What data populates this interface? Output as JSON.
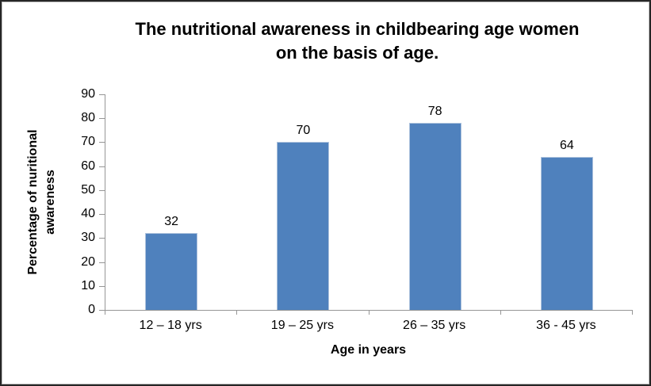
{
  "chart_data": {
    "type": "bar",
    "title": "The nutritional awareness in childbearing age women on the basis of age.",
    "categories": [
      "12 – 18 yrs",
      "19 – 25 yrs",
      "26 – 35 yrs",
      "36 - 45 yrs"
    ],
    "values": [
      32,
      70,
      78,
      64
    ],
    "data_labels": [
      "32",
      "70",
      "78",
      "64"
    ],
    "xlabel": "Age in years",
    "ylabel": "Percentage of nuritional awareness",
    "ylim": [
      0,
      90
    ],
    "yticks": [
      0,
      10,
      20,
      30,
      40,
      50,
      60,
      70,
      80,
      90
    ],
    "grid": false,
    "legend": "none",
    "bar_color": "#4F81BD",
    "bar_border_color": "#ADC2DD",
    "axis_color": "#969696",
    "text_color": "#000000",
    "background": "#FFFFFF"
  }
}
